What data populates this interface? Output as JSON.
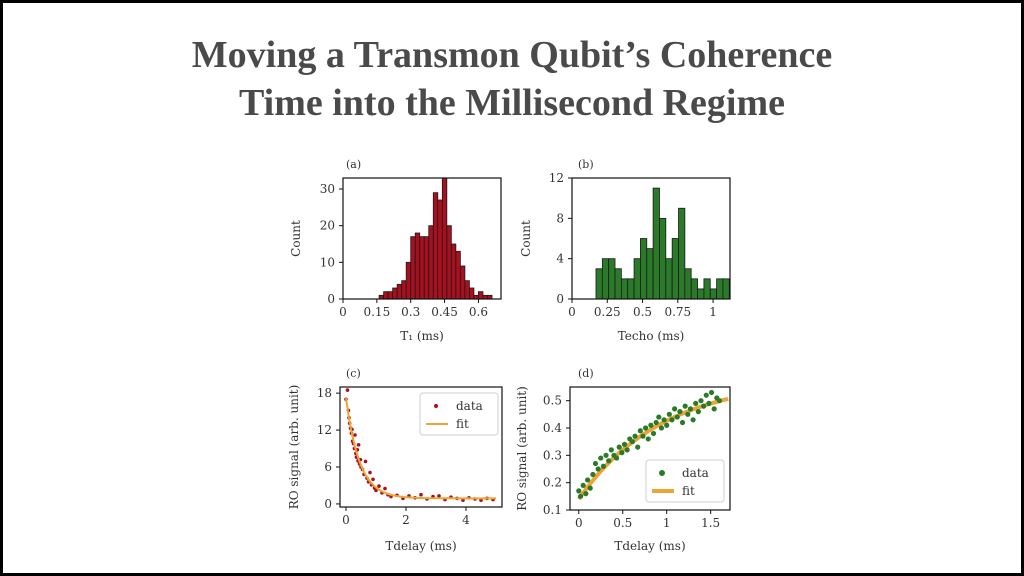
{
  "slide": {
    "title_line1": "Moving a Transmon Qubit’s Coherence",
    "title_line2": "Time into the Millisecond Regime"
  },
  "colors": {
    "red": "#a8101f",
    "green": "#2a7a2a",
    "fit": "#eba435",
    "text": "#4a4a4a"
  },
  "chart_data": [
    {
      "type": "bar",
      "panel_label": "(a)",
      "xlabel": "T₁ (ms)",
      "ylabel": "Count",
      "xlim": [
        0,
        0.7
      ],
      "ylim": [
        0,
        33
      ],
      "xticks": [
        "0",
        "0.15",
        "0.3",
        "0.45",
        "0.6"
      ],
      "yticks": [
        "0",
        "10",
        "20",
        "30"
      ],
      "bin_width": 0.02,
      "bin_starts": [
        0.16,
        0.18,
        0.2,
        0.22,
        0.24,
        0.26,
        0.28,
        0.3,
        0.32,
        0.34,
        0.36,
        0.38,
        0.4,
        0.42,
        0.44,
        0.46,
        0.48,
        0.5,
        0.52,
        0.54,
        0.56,
        0.58,
        0.6,
        0.62,
        0.64
      ],
      "values": [
        1,
        2,
        2,
        3,
        4,
        5,
        10,
        17,
        18,
        17,
        17,
        20,
        29,
        27,
        33,
        20,
        15,
        13,
        9,
        5,
        3,
        1,
        2,
        1,
        1
      ]
    },
    {
      "type": "bar",
      "panel_label": "(b)",
      "xlabel": "Techo (ms)",
      "ylabel": "Count",
      "xlim": [
        0,
        1.12
      ],
      "ylim": [
        0,
        12
      ],
      "xticks": [
        "0",
        "0.25",
        "0.5",
        "0.75",
        "1"
      ],
      "yticks": [
        "0",
        "4",
        "8",
        "12"
      ],
      "bin_width": 0.045,
      "bin_starts": [
        0.17,
        0.215,
        0.26,
        0.305,
        0.35,
        0.395,
        0.44,
        0.485,
        0.53,
        0.575,
        0.62,
        0.665,
        0.71,
        0.755,
        0.8,
        0.845,
        0.89,
        0.935,
        0.98,
        1.025,
        1.07
      ],
      "values": [
        3,
        4,
        4,
        3,
        2,
        2,
        4,
        6,
        5,
        11,
        8,
        4,
        6,
        9,
        3,
        2,
        1,
        2,
        1,
        2,
        2
      ]
    },
    {
      "type": "scatter",
      "panel_label": "(c)",
      "xlabel": "Tdelay (ms)",
      "ylabel": "RO signal (arb. unit)",
      "xlim": [
        -0.2,
        5.2
      ],
      "ylim": [
        -0.5,
        19
      ],
      "xticks": [
        "0",
        "2",
        "4"
      ],
      "yticks": [
        "0",
        "6",
        "12",
        "18"
      ],
      "legend": {
        "position": "top-right",
        "entries": [
          "data",
          "fit"
        ]
      },
      "fit": {
        "model": "A*exp(-t/T)+C",
        "A": 16.3,
        "T": 0.45,
        "C": 0.9
      },
      "series": [
        {
          "name": "data",
          "x": [
            0.0,
            0.05,
            0.08,
            0.1,
            0.12,
            0.15,
            0.18,
            0.2,
            0.22,
            0.25,
            0.28,
            0.3,
            0.33,
            0.35,
            0.38,
            0.4,
            0.42,
            0.45,
            0.48,
            0.5,
            0.55,
            0.6,
            0.65,
            0.7,
            0.75,
            0.8,
            0.85,
            0.9,
            0.95,
            1.0,
            1.1,
            1.2,
            1.3,
            1.4,
            1.5,
            1.7,
            1.9,
            2.1,
            2.3,
            2.5,
            2.7,
            2.9,
            3.1,
            3.3,
            3.5,
            3.7,
            3.9,
            4.1,
            4.3,
            4.5,
            4.7,
            4.9
          ],
          "y": [
            17.0,
            18.5,
            15.2,
            14.0,
            13.1,
            12.3,
            11.5,
            12.1,
            10.2,
            9.8,
            9.0,
            11.2,
            8.2,
            7.6,
            8.8,
            7.0,
            9.6,
            6.5,
            7.2,
            6.0,
            5.6,
            4.8,
            6.9,
            4.2,
            3.6,
            5.1,
            3.1,
            4.0,
            2.6,
            2.2,
            2.9,
            1.8,
            2.5,
            1.5,
            1.2,
            1.4,
            0.9,
            1.3,
            1.0,
            1.5,
            0.8,
            1.2,
            1.3,
            0.7,
            1.1,
            0.9,
            0.6,
            1.0,
            0.8,
            0.6,
            0.9,
            0.7
          ]
        }
      ]
    },
    {
      "type": "scatter",
      "panel_label": "(d)",
      "xlabel": "Tdelay (ms)",
      "ylabel": "RO signal (arb. unit)",
      "xlim": [
        -0.1,
        1.72
      ],
      "ylim": [
        0.1,
        0.55
      ],
      "xticks": [
        "0",
        "0.5",
        "1",
        "1.5"
      ],
      "yticks": [
        "0.1",
        "0.2",
        "0.3",
        "0.4",
        "0.5"
      ],
      "legend": {
        "position": "bottom-right",
        "entries": [
          "data",
          "fit"
        ]
      },
      "fit": {
        "model": "C-A*exp(-t/T)",
        "C": 0.58,
        "A": 0.44,
        "T": 0.95
      },
      "series": [
        {
          "name": "data",
          "x": [
            0.0,
            0.02,
            0.05,
            0.08,
            0.1,
            0.13,
            0.16,
            0.19,
            0.22,
            0.25,
            0.28,
            0.31,
            0.34,
            0.37,
            0.4,
            0.43,
            0.46,
            0.49,
            0.52,
            0.55,
            0.58,
            0.61,
            0.64,
            0.67,
            0.7,
            0.73,
            0.76,
            0.79,
            0.82,
            0.85,
            0.88,
            0.91,
            0.94,
            0.97,
            1.0,
            1.03,
            1.06,
            1.09,
            1.12,
            1.15,
            1.18,
            1.21,
            1.24,
            1.27,
            1.3,
            1.33,
            1.36,
            1.39,
            1.42,
            1.45,
            1.48,
            1.51,
            1.54,
            1.57,
            1.6
          ],
          "y": [
            0.17,
            0.15,
            0.19,
            0.16,
            0.21,
            0.18,
            0.23,
            0.27,
            0.25,
            0.29,
            0.26,
            0.3,
            0.28,
            0.32,
            0.3,
            0.29,
            0.33,
            0.31,
            0.34,
            0.32,
            0.36,
            0.35,
            0.37,
            0.33,
            0.39,
            0.37,
            0.4,
            0.36,
            0.41,
            0.38,
            0.42,
            0.44,
            0.4,
            0.43,
            0.41,
            0.45,
            0.43,
            0.47,
            0.44,
            0.46,
            0.42,
            0.48,
            0.45,
            0.47,
            0.43,
            0.49,
            0.46,
            0.5,
            0.48,
            0.52,
            0.49,
            0.53,
            0.47,
            0.51,
            0.5
          ]
        }
      ]
    }
  ]
}
